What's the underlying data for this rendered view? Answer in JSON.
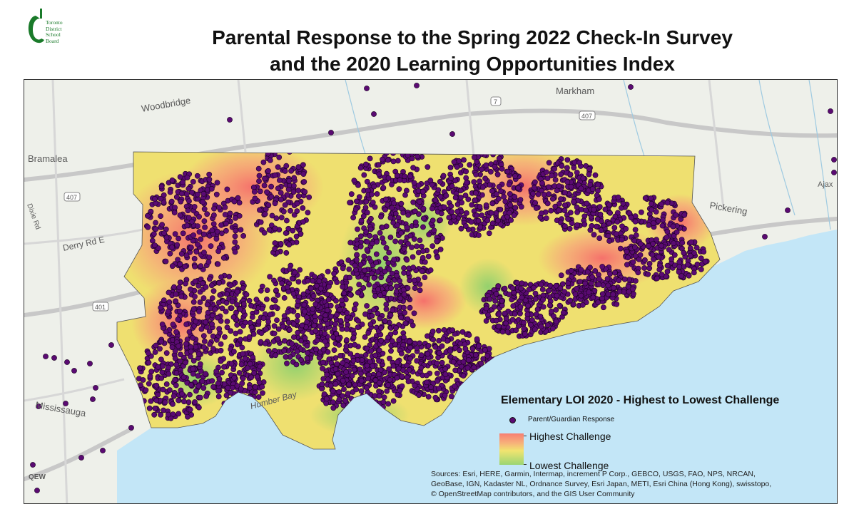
{
  "logo": {
    "org_lines": [
      "Toronto",
      "District",
      "School",
      "Board"
    ],
    "brand_color": "#1a7a2a"
  },
  "title": {
    "line1": "Parental Response to the Spring 2022 Check-In Survey",
    "line2": "and the 2020 Learning Opportunities Index"
  },
  "map": {
    "place_labels": {
      "woodbridge": "Woodbridge",
      "markham": "Markham",
      "bramalea": "Bramalea",
      "pickering": "Pickering",
      "derry": "Derry Rd E",
      "mississauga": "Mississauga",
      "humber": "Humber Bay",
      "ajax": "Ajax",
      "hwy407a": "407",
      "hwy407b": "407",
      "hwy401": "401",
      "hwy7": "7",
      "qew": "QEW",
      "dixie": "Dixie Rd"
    },
    "colors": {
      "water": "#c3e6f7",
      "land": "#eef0ea",
      "high": "#f77f72",
      "mid": "#f1e470",
      "low": "#9bd573",
      "dot": "#5a0a72"
    }
  },
  "legend": {
    "title": "Elementary LOI 2020 - Highest to Lowest Challenge",
    "dot_label": "Parent/Guardian Response",
    "high_label": "Highest Challenge",
    "low_label": "Lowest Challenge"
  },
  "sources": {
    "line1": "Sources: Esri, HERE, Garmin, Intermap, increment P Corp., GEBCO, USGS, FAO, NPS, NRCAN,",
    "line2": "GeoBase, IGN, Kadaster NL, Ordnance Survey, Esri Japan, METI, Esri China (Hong Kong), swisstopo,",
    "line3": "© OpenStreetMap contributors, and the GIS User Community"
  }
}
